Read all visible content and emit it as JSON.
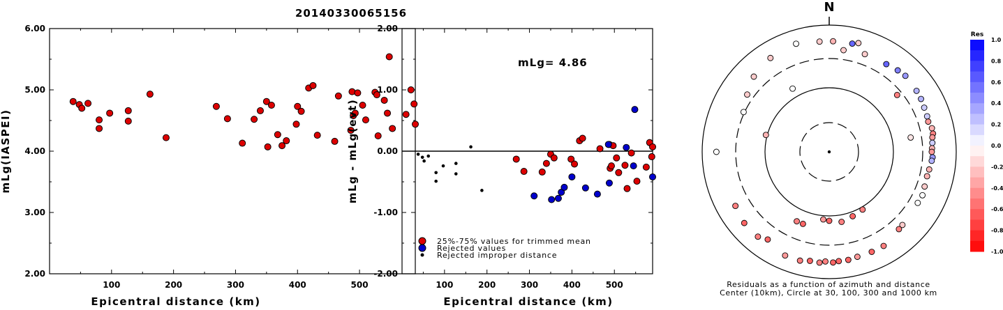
{
  "title": "20140330065156",
  "chart_data": [
    {
      "type": "scatter",
      "name": "magnitude_vs_distance",
      "xlabel": "Epicentral distance (km)",
      "ylabel": "mLg(IASPEI)",
      "xlim": [
        0,
        590
      ],
      "ylim": [
        2.0,
        6.0
      ],
      "x_tick_labels": [
        "100",
        "200",
        "300",
        "400",
        "500"
      ],
      "y_tick_labels": [
        "2.00",
        "3.00",
        "4.00",
        "5.00",
        "6.00"
      ],
      "color": "#dd0000",
      "points": [
        [
          38,
          4.81
        ],
        [
          48,
          4.76
        ],
        [
          52,
          4.7
        ],
        [
          62,
          4.78
        ],
        [
          80,
          4.51
        ],
        [
          80,
          4.37
        ],
        [
          97,
          4.62
        ],
        [
          127,
          4.66
        ],
        [
          127,
          4.49
        ],
        [
          162,
          4.93
        ],
        [
          188,
          4.22
        ],
        [
          269,
          4.73
        ],
        [
          287,
          4.53
        ],
        [
          311,
          4.13
        ],
        [
          330,
          4.52
        ],
        [
          340,
          4.66
        ],
        [
          350,
          4.81
        ],
        [
          352,
          4.07
        ],
        [
          358,
          4.75
        ],
        [
          368,
          4.27
        ],
        [
          375,
          4.09
        ],
        [
          382,
          4.17
        ],
        [
          398,
          4.44
        ],
        [
          400,
          4.73
        ],
        [
          406,
          4.65
        ],
        [
          418,
          5.03
        ],
        [
          425,
          5.07
        ],
        [
          432,
          4.26
        ],
        [
          460,
          4.16
        ],
        [
          466,
          4.9
        ],
        [
          486,
          4.34
        ],
        [
          488,
          4.97
        ],
        [
          490,
          4.58
        ],
        [
          493,
          4.62
        ],
        [
          497,
          4.95
        ],
        [
          505,
          4.75
        ],
        [
          510,
          4.51
        ],
        [
          525,
          4.96
        ],
        [
          528,
          4.92
        ],
        [
          530,
          4.25
        ],
        [
          540,
          4.83
        ],
        [
          545,
          4.62
        ],
        [
          548,
          5.54
        ],
        [
          553,
          4.37
        ],
        [
          575,
          4.6
        ],
        [
          583,
          5.0
        ],
        [
          588,
          4.77
        ],
        [
          590,
          4.44
        ]
      ]
    },
    {
      "type": "scatter",
      "name": "residual_vs_distance",
      "xlabel": "Epicentral distance (km)",
      "ylabel": "mLg - mLg(evt)",
      "xlim": [
        0,
        590
      ],
      "ylim": [
        -2.0,
        2.0
      ],
      "x_tick_labels": [
        "100",
        "200",
        "300",
        "400",
        "500"
      ],
      "y_tick_labels": [
        "-2.00",
        "-1.00",
        "0.00",
        "1.00",
        "2.00"
      ],
      "annotation": "mLg= 4.86",
      "legend": [
        "25%-75% values for trimmed mean",
        "Rejected values",
        "Rejected improper distance"
      ],
      "legend_colors": [
        "#dd0000",
        "#0000cc",
        "#000000"
      ],
      "trimmed": [
        [
          269,
          -0.13
        ],
        [
          287,
          -0.33
        ],
        [
          330,
          -0.34
        ],
        [
          340,
          -0.2
        ],
        [
          350,
          -0.05
        ],
        [
          358,
          -0.11
        ],
        [
          398,
          -0.13
        ],
        [
          406,
          -0.21
        ],
        [
          418,
          0.17
        ],
        [
          425,
          0.21
        ],
        [
          466,
          0.04
        ],
        [
          488,
          0.11
        ],
        [
          490,
          -0.28
        ],
        [
          493,
          -0.24
        ],
        [
          497,
          0.09
        ],
        [
          505,
          -0.11
        ],
        [
          510,
          -0.35
        ],
        [
          525,
          -0.23
        ],
        [
          530,
          -0.61
        ],
        [
          540,
          -0.03
        ],
        [
          553,
          -0.49
        ],
        [
          575,
          -0.26
        ],
        [
          583,
          0.14
        ],
        [
          588,
          -0.09
        ],
        [
          590,
          0.07
        ]
      ],
      "rejected": [
        [
          311,
          -0.73
        ],
        [
          352,
          -0.79
        ],
        [
          368,
          -0.77
        ],
        [
          375,
          -0.67
        ],
        [
          382,
          -0.59
        ],
        [
          400,
          -0.42
        ],
        [
          432,
          -0.6
        ],
        [
          460,
          -0.7
        ],
        [
          486,
          0.11
        ],
        [
          488,
          -0.52
        ],
        [
          528,
          0.06
        ],
        [
          545,
          -0.24
        ],
        [
          548,
          0.68
        ],
        [
          590,
          -0.42
        ]
      ],
      "rejected_distance": [
        [
          38,
          -0.05
        ],
        [
          48,
          -0.1
        ],
        [
          52,
          -0.16
        ],
        [
          62,
          -0.08
        ],
        [
          80,
          -0.35
        ],
        [
          80,
          -0.49
        ],
        [
          97,
          -0.24
        ],
        [
          127,
          -0.2
        ],
        [
          127,
          -0.37
        ],
        [
          162,
          0.07
        ],
        [
          188,
          -0.64
        ]
      ]
    },
    {
      "type": "polar_scatter",
      "name": "residual_azimuth_map",
      "north_label": "N",
      "caption_line1": "Residuals as a function of azimuth and distance",
      "caption_line2": "Center (10km), Circle at 30, 100, 300 and 1000 km",
      "circles_km": [
        30,
        100,
        300,
        1000
      ],
      "colorbar_title": "Res",
      "colorbar_ticks": [
        "1.0",
        "0.8",
        "0.6",
        "0.4",
        "0.2",
        "0.0",
        "-0.2",
        "-0.4",
        "-0.6",
        "-0.8",
        "-1.0"
      ],
      "points_az_dist_res": [
        [
          330,
          140,
          0.0
        ],
        [
          80,
          200,
          -0.1
        ],
        [
          50,
          250,
          -0.5
        ],
        [
          180,
          120,
          -0.6
        ],
        [
          185,
          115,
          -0.4
        ],
        [
          170,
          130,
          -0.5
        ],
        [
          160,
          118,
          -0.6
        ],
        [
          150,
          110,
          -0.5
        ],
        [
          200,
          160,
          -0.6
        ],
        [
          205,
          160,
          -0.5
        ],
        [
          285,
          105,
          -0.3
        ],
        [
          8,
          420,
          -0.2
        ],
        [
          20,
          440,
          -0.2
        ],
        [
          33,
          450,
          0.6
        ],
        [
          40,
          480,
          0.5
        ],
        [
          45,
          500,
          0.4
        ],
        [
          55,
          480,
          0.3
        ],
        [
          60,
          470,
          0.3
        ],
        [
          65,
          450,
          0.2
        ],
        [
          70,
          440,
          0.2
        ],
        [
          73,
          430,
          -0.4
        ],
        [
          77,
          460,
          -0.3
        ],
        [
          80,
          460,
          -0.5
        ],
        [
          82,
          440,
          -0.4
        ],
        [
          85,
          430,
          0.2
        ],
        [
          88,
          420,
          -0.3
        ],
        [
          90,
          415,
          -0.4
        ],
        [
          93,
          430,
          0.4
        ],
        [
          95,
          420,
          0.3
        ],
        [
          100,
          400,
          -0.3
        ],
        [
          104,
          390,
          -0.3
        ],
        [
          110,
          400,
          -0.2
        ],
        [
          115,
          420,
          0.0
        ],
        [
          120,
          410,
          0.0
        ],
        [
          135,
          430,
          -0.2
        ],
        [
          138,
          440,
          -0.5
        ],
        [
          150,
          520,
          -0.5
        ],
        [
          157,
          520,
          -0.6
        ],
        [
          165,
          520,
          -0.4
        ],
        [
          170,
          540,
          -0.6
        ],
        [
          175,
          540,
          -0.6
        ],
        [
          178,
          560,
          -0.6
        ],
        [
          182,
          540,
          -0.5
        ],
        [
          185,
          570,
          -0.5
        ],
        [
          190,
          560,
          -0.6
        ],
        [
          195,
          600,
          -0.5
        ],
        [
          203,
          600,
          -0.4
        ],
        [
          215,
          490,
          -0.6
        ],
        [
          230,
          560,
          -0.6
        ],
        [
          240,
          510,
          -0.5
        ],
        [
          270,
          600,
          0.0
        ],
        [
          295,
          310,
          0.0
        ],
        [
          305,
          380,
          -0.2
        ],
        [
          315,
          480,
          -0.2
        ],
        [
          328,
          560,
          -0.2
        ],
        [
          343,
          610,
          0.0
        ],
        [
          355,
          560,
          -0.2
        ],
        [
          2,
          560,
          -0.3
        ],
        [
          12,
          560,
          0.6
        ],
        [
          15,
          600,
          -0.2
        ],
        [
          220,
          560,
          -0.5
        ]
      ]
    }
  ]
}
